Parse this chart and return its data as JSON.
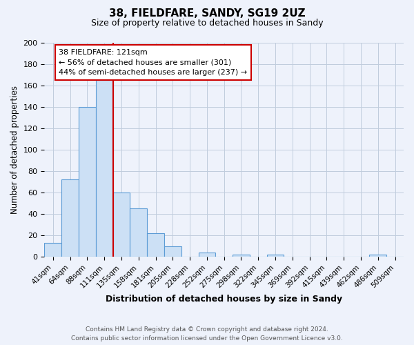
{
  "title": "38, FIELDFARE, SANDY, SG19 2UZ",
  "subtitle": "Size of property relative to detached houses in Sandy",
  "xlabel": "Distribution of detached houses by size in Sandy",
  "ylabel": "Number of detached properties",
  "bin_labels": [
    "41sqm",
    "64sqm",
    "88sqm",
    "111sqm",
    "135sqm",
    "158sqm",
    "181sqm",
    "205sqm",
    "228sqm",
    "252sqm",
    "275sqm",
    "298sqm",
    "322sqm",
    "345sqm",
    "369sqm",
    "392sqm",
    "415sqm",
    "439sqm",
    "462sqm",
    "486sqm",
    "509sqm"
  ],
  "bar_values": [
    13,
    72,
    140,
    165,
    60,
    45,
    22,
    10,
    0,
    4,
    0,
    2,
    0,
    2,
    0,
    0,
    0,
    0,
    0,
    2,
    0
  ],
  "bar_color": "#cce0f5",
  "bar_edge_color": "#5b9bd5",
  "ylim": [
    0,
    200
  ],
  "yticks": [
    0,
    20,
    40,
    60,
    80,
    100,
    120,
    140,
    160,
    180,
    200
  ],
  "vline_pos": 3.5,
  "vline_color": "#cc0000",
  "annotation_title": "38 FIELDFARE: 121sqm",
  "annotation_line1": "← 56% of detached houses are smaller (301)",
  "annotation_line2": "44% of semi-detached houses are larger (237) →",
  "annotation_box_color": "#ffffff",
  "annotation_box_edge": "#cc0000",
  "footer1": "Contains HM Land Registry data © Crown copyright and database right 2024.",
  "footer2": "Contains public sector information licensed under the Open Government Licence v3.0.",
  "background_color": "#eef2fb",
  "plot_background": "#eef2fb",
  "grid_color": "#c0ccdd"
}
